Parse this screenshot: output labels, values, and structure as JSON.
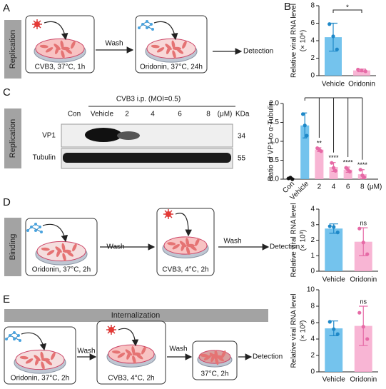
{
  "panel_labels": [
    "A",
    "B",
    "C",
    "D",
    "E"
  ],
  "diagrams": {
    "A": {
      "side": "Replication",
      "steps": [
        "CVB3, 37°C, 1h",
        "Oridonin, 37°C, 24h"
      ],
      "wash": "Wash",
      "detection": "Detection"
    },
    "D": {
      "side": "Binding",
      "steps": [
        "Oridonin, 37°C, 2h",
        "CVB3, 4°C, 2h"
      ],
      "washes": [
        "Wash",
        "Wash"
      ],
      "detection": "Detection"
    },
    "E": {
      "header": "Internalization",
      "steps": [
        "Oridonin, 37°C, 2h",
        "CVB3, 4°C, 2h",
        "37°C, 2h"
      ],
      "washes": [
        "Wash",
        "Wash"
      ],
      "detection": "Detection"
    }
  },
  "blot": {
    "side": "Replication",
    "treatment": "CVB3 i.p. (MOI=0.5)",
    "lanes": [
      "Con",
      "Vehicle",
      "2",
      "4",
      "6",
      "8"
    ],
    "lane_unit": "(μM)",
    "kda_label": "KDa",
    "rows": [
      {
        "name": "VP1",
        "kda": "34"
      },
      {
        "name": "Tubulin",
        "kda": "55"
      }
    ]
  },
  "chart_data": [
    {
      "type": "bar",
      "ylabel": "Relative viral RNA level",
      "yunit": "(× 10⁶)",
      "categories": [
        "Vehicle",
        "Oridonin"
      ],
      "values": [
        4.4,
        0.6
      ],
      "errors": [
        1.6,
        0.15
      ],
      "points": [
        [
          5.9,
          4.5,
          3.0
        ],
        [
          0.7,
          0.6,
          0.5
        ]
      ],
      "colors": [
        "#5cb8ea",
        "#f7a8cc"
      ],
      "point_colors": [
        "#1e88c8",
        "#e66aa6"
      ],
      "sig_labels": [
        null,
        "*"
      ],
      "ylim": [
        0,
        8
      ],
      "yticks": [
        0,
        2,
        4,
        6,
        8
      ]
    },
    {
      "type": "bar",
      "ylabel": "Ratio of VP1 to α-Tubulin",
      "categories": [
        "Con",
        "Vehicle",
        "2",
        "4",
        "6",
        "8"
      ],
      "x_unit": "(μM)",
      "values": [
        0.02,
        1.42,
        0.78,
        0.32,
        0.25,
        0.13
      ],
      "errors": [
        0.02,
        0.33,
        0.05,
        0.12,
        0.07,
        0.12
      ],
      "points": [
        [
          0.02,
          0.04,
          0.0
        ],
        [
          1.72,
          1.42,
          1.15
        ],
        [
          0.82,
          0.78,
          0.74
        ],
        [
          0.43,
          0.3,
          0.22
        ],
        [
          0.3,
          0.25,
          0.2
        ],
        [
          0.25,
          0.1,
          0.05
        ]
      ],
      "colors": [
        "#222222",
        "#5cb8ea",
        "#f7a8cc",
        "#f7a8cc",
        "#f7a8cc",
        "#f7a8cc"
      ],
      "point_colors": [
        "#111111",
        "#1e88c8",
        "#e66aa6",
        "#e66aa6",
        "#e66aa6",
        "#e66aa6"
      ],
      "sig_labels": [
        null,
        null,
        "**",
        "****",
        "****",
        "****"
      ],
      "ylim": [
        0,
        2
      ],
      "yticks": [
        {
          "value": 0,
          "label": "0.0"
        },
        {
          "value": 0.5,
          "label": "0.5"
        },
        {
          "value": 1,
          "label": "1.0"
        },
        {
          "value": 1.5,
          "label": "1.5"
        },
        {
          "value": 2,
          "label": "2.0"
        }
      ]
    },
    {
      "type": "bar",
      "ylabel": "Relative viral RNA level",
      "yunit": "(× 10³)",
      "categories": [
        "Vehicle",
        "Oridonin"
      ],
      "values": [
        2.75,
        1.9
      ],
      "errors": [
        0.3,
        0.9
      ],
      "points": [
        [
          2.9,
          2.85,
          2.5
        ],
        [
          2.75,
          1.85,
          1.1
        ]
      ],
      "colors": [
        "#5cb8ea",
        "#f7a8cc"
      ],
      "point_colors": [
        "#1e88c8",
        "#e66aa6"
      ],
      "sig_labels": [
        null,
        "ns"
      ],
      "ylim": [
        0,
        4
      ],
      "yticks": [
        0,
        1,
        2,
        3,
        4
      ]
    },
    {
      "type": "bar",
      "ylabel": "Relative viral RNA level",
      "yunit": "(× 10²)",
      "categories": [
        "Vehicle",
        "Oridonin"
      ],
      "values": [
        5.3,
        5.6
      ],
      "errors": [
        0.9,
        2.4
      ],
      "points": [
        [
          6.1,
          5.2,
          4.6
        ],
        [
          7.2,
          5.5,
          4.0
        ]
      ],
      "colors": [
        "#5cb8ea",
        "#f7a8cc"
      ],
      "point_colors": [
        "#1e88c8",
        "#e66aa6"
      ],
      "sig_labels": [
        null,
        "ns"
      ],
      "ylim": [
        0,
        10
      ],
      "yticks": [
        0,
        2,
        4,
        6,
        8,
        10
      ]
    }
  ]
}
